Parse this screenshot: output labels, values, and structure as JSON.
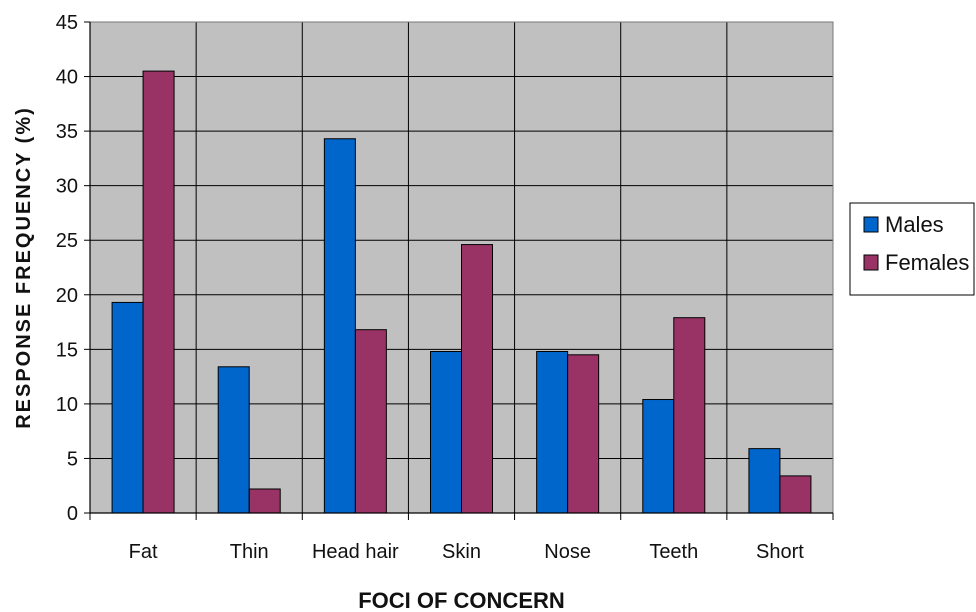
{
  "chart_data": {
    "type": "bar",
    "categories": [
      "Fat",
      "Thin",
      "Head hair",
      "Skin",
      "Nose",
      "Teeth",
      "Short"
    ],
    "series": [
      {
        "name": "Males",
        "color": "#0066cc",
        "values": [
          19.3,
          13.4,
          34.3,
          14.8,
          14.8,
          10.4,
          5.9
        ]
      },
      {
        "name": "Females",
        "color": "#993366",
        "values": [
          40.5,
          2.2,
          16.8,
          24.6,
          14.5,
          17.9,
          3.4
        ]
      }
    ],
    "title": "",
    "xlabel": "FOCI OF CONCERN",
    "ylabel": "RESPONSE FREQUENCY (%)",
    "ylim": [
      0,
      45
    ],
    "yticks": [
      0,
      5,
      10,
      15,
      20,
      25,
      30,
      35,
      40,
      45
    ],
    "grid": true,
    "plot_background": "#c0c0c0",
    "legend_position": "right"
  }
}
